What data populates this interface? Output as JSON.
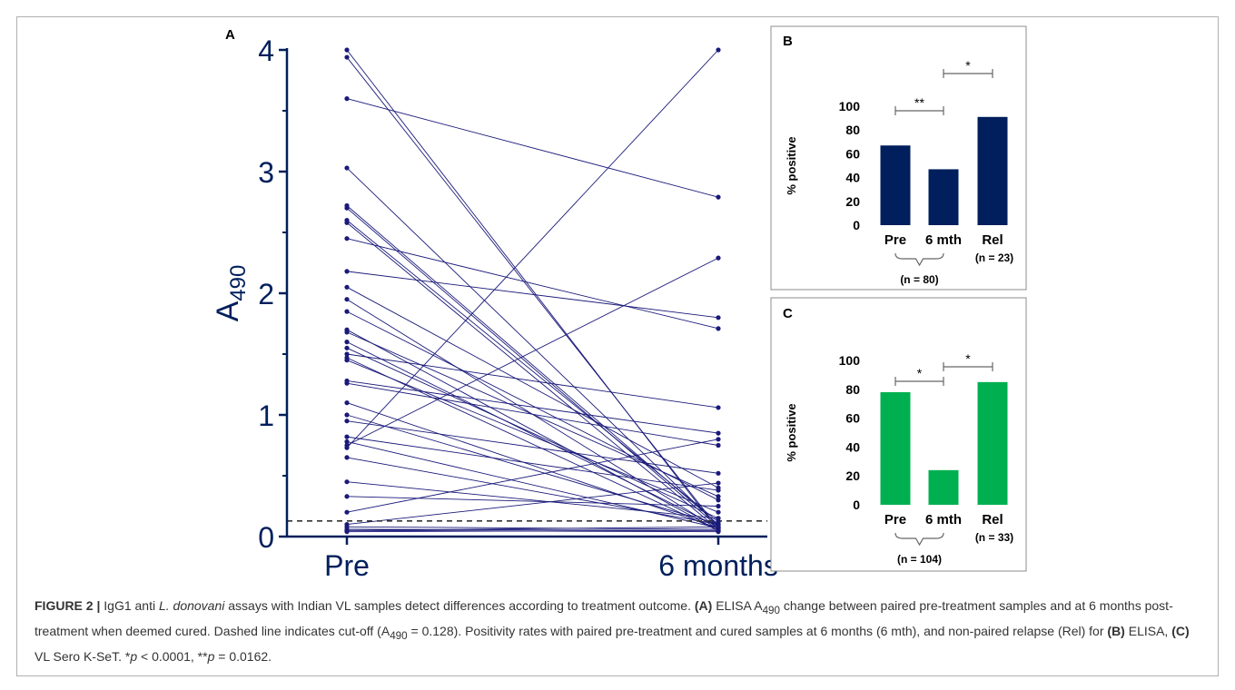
{
  "colors": {
    "navy": "#001f5c",
    "green": "#00b050",
    "line": "#1a1a7a",
    "cutoff": "#333333"
  },
  "caption": {
    "fig_label": "FIGURE 2 |",
    "p1": " IgG1 anti ",
    "species": "L. donovani",
    "p2": " assays with Indian VL samples detect differences according to treatment outcome. ",
    "a_label": "(A)",
    "p3": " ELISA A",
    "sub490": "490",
    "p4": " change between paired pre-treatment samples and at 6 months post-treatment when deemed cured. Dashed line indicates cut-off (A",
    "sub490b": "490",
    "p5": " = 0.128). Positivity rates with paired pre-treatment and cured samples at 6 months (6 mth), and non-paired relapse (Rel) for ",
    "b_label": "(B)",
    "p6": " ELISA, ",
    "c_label": "(C)",
    "p7": " VL Sero K-SeT. *",
    "p_sym1": "p",
    "p8": " < 0.0001, **",
    "p_sym2": "p",
    "p9": " = 0.0162."
  },
  "chart_data": [
    {
      "panel": "A",
      "type": "line",
      "x": [
        "Pre",
        "6 months"
      ],
      "ylabel": "A",
      "ylabel_sub": "490",
      "ylim": [
        0,
        4
      ],
      "yticks": [
        "0",
        "1",
        "2",
        "3",
        "4"
      ],
      "cutoff": 0.128,
      "pairs": [
        [
          4.0,
          0.05
        ],
        [
          3.94,
          0.07
        ],
        [
          3.6,
          2.79
        ],
        [
          3.03,
          0.09
        ],
        [
          2.72,
          0.1
        ],
        [
          2.7,
          0.08
        ],
        [
          2.6,
          0.12
        ],
        [
          2.58,
          0.06
        ],
        [
          2.45,
          1.71
        ],
        [
          2.18,
          1.8
        ],
        [
          2.05,
          0.4
        ],
        [
          1.95,
          0.06
        ],
        [
          1.85,
          0.3
        ],
        [
          1.7,
          0.05
        ],
        [
          1.68,
          0.33
        ],
        [
          1.6,
          0.08
        ],
        [
          1.55,
          0.15
        ],
        [
          1.5,
          1.06
        ],
        [
          1.47,
          0.05
        ],
        [
          1.45,
          0.2
        ],
        [
          1.28,
          0.85
        ],
        [
          1.26,
          0.75
        ],
        [
          1.1,
          0.07
        ],
        [
          1.0,
          0.1
        ],
        [
          0.95,
          0.52
        ],
        [
          0.82,
          0.38
        ],
        [
          0.78,
          0.07
        ],
        [
          0.75,
          2.29
        ],
        [
          0.73,
          4.0
        ],
        [
          0.65,
          0.1
        ],
        [
          0.45,
          0.15
        ],
        [
          0.33,
          0.25
        ],
        [
          0.2,
          0.8
        ],
        [
          0.1,
          0.44
        ],
        [
          0.08,
          0.06
        ],
        [
          0.06,
          0.05
        ],
        [
          0.05,
          0.08
        ],
        [
          0.05,
          0.04
        ],
        [
          0.04,
          0.05
        ]
      ]
    },
    {
      "panel": "B",
      "type": "bar",
      "categories": [
        "Pre",
        "6 mth",
        "Rel"
      ],
      "values": [
        67,
        47,
        91
      ],
      "ylabel": "% positive",
      "ylim": [
        0,
        100
      ],
      "yticks": [
        "0",
        "20",
        "40",
        "60",
        "80",
        "100"
      ],
      "n_labels": [
        "(n = 80)",
        "(n = 23)"
      ],
      "significance": [
        {
          "from": "Pre",
          "to": "6 mth",
          "label": "**"
        },
        {
          "from": "6 mth",
          "to": "Rel",
          "label": "*"
        }
      ]
    },
    {
      "panel": "C",
      "type": "bar",
      "categories": [
        "Pre",
        "6 mth",
        "Rel"
      ],
      "values": [
        78,
        24,
        85
      ],
      "ylabel": "% positive",
      "ylim": [
        0,
        100
      ],
      "yticks": [
        "0",
        "20",
        "40",
        "60",
        "80",
        "100"
      ],
      "n_labels": [
        "(n = 104)",
        "(n = 33)"
      ],
      "significance": [
        {
          "from": "Pre",
          "to": "6 mth",
          "label": "*"
        },
        {
          "from": "6 mth",
          "to": "Rel",
          "label": "*"
        }
      ]
    }
  ]
}
